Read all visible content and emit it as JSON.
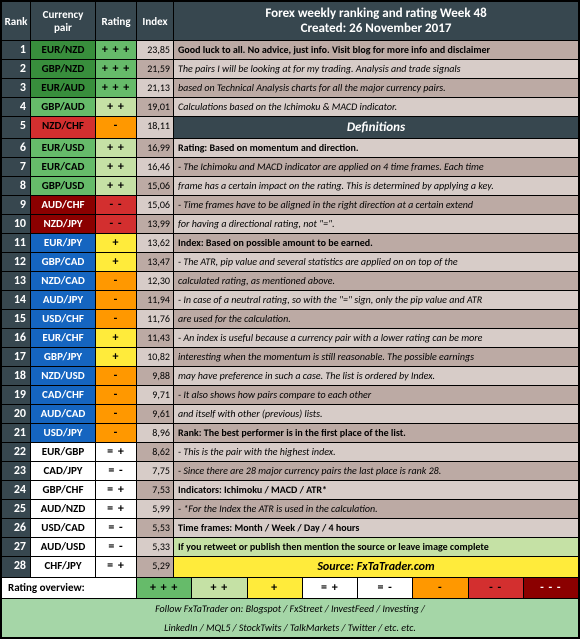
{
  "header": {
    "rank": "Rank",
    "pair": "Currency pair",
    "rating": "Rating",
    "index": "Index",
    "title1": "Forex weekly ranking and rating Week 48",
    "title2": "Created: 26 November 2017"
  },
  "rows": [
    {
      "rank": "1",
      "pair": "EUR/NZD",
      "rating": "+ + +",
      "idx": "23,85",
      "pc": "green-d",
      "rc": "green-m",
      "ic": "tan-l",
      "info": "Good luck to all. No advice, just info. Visit blog for more info and disclaimer",
      "infoc": "tan-d",
      "bold": true
    },
    {
      "rank": "2",
      "pair": "GBP/NZD",
      "rating": "+ + +",
      "idx": "21,59",
      "pc": "green-d",
      "rc": "green-m",
      "ic": "tan-d",
      "info": "The pairs I will be looking at for my trading. Analysis and trade signals",
      "infoc": "tan-l"
    },
    {
      "rank": "3",
      "pair": "EUR/AUD",
      "rating": "+ + +",
      "idx": "21,13",
      "pc": "green-d",
      "rc": "green-m",
      "ic": "tan-l",
      "info": "based on Technical Analysis charts for all the major currency pairs.",
      "infoc": "tan-d"
    },
    {
      "rank": "4",
      "pair": "GBP/AUD",
      "rating": "+ +",
      "idx": "19,01",
      "pc": "green-m",
      "rc": "green-l",
      "ic": "tan-d",
      "info": "Calculations based on the Ichimoku & MACD indicator.",
      "infoc": "tan-l"
    },
    {
      "rank": "5",
      "pair": "NZD/CHF",
      "rating": "-",
      "idx": "18,11",
      "pc": "red",
      "rc": "orange",
      "ic": "tan-l",
      "info": "Definitions",
      "infoc": "defhead",
      "def": true
    },
    {
      "rank": "6",
      "pair": "EUR/USD",
      "rating": "+ +",
      "idx": "16,99",
      "pc": "green-m",
      "rc": "green-l",
      "ic": "tan-d",
      "info": "Rating: Based on momentum and direction.",
      "infoc": "tan-l",
      "bold": true
    },
    {
      "rank": "7",
      "pair": "EUR/CAD",
      "rating": "+ +",
      "idx": "16,46",
      "pc": "green-m",
      "rc": "green-l",
      "ic": "tan-l",
      "info": "- The Ichimoku and MACD indicator are applied on 4 time frames. Each time",
      "infoc": "tan-d"
    },
    {
      "rank": "8",
      "pair": "GBP/USD",
      "rating": "+ +",
      "idx": "15,06",
      "pc": "green-m",
      "rc": "green-l",
      "ic": "tan-d",
      "info": "  frame has a certain impact on the rating. This is determined by applying a key.",
      "infoc": "tan-l"
    },
    {
      "rank": "9",
      "pair": "AUD/CHF",
      "rating": "- -",
      "idx": "15,06",
      "pc": "red-d",
      "rc": "red",
      "ic": "tan-l",
      "info": "- Time frames have to be aligned in the right direction at  a certain extend",
      "infoc": "tan-d"
    },
    {
      "rank": "10",
      "pair": "NZD/JPY",
      "rating": "- -",
      "idx": "13,99",
      "pc": "red-d",
      "rc": "red",
      "ic": "tan-d",
      "info": "  for having a directional rating, not \"=\".",
      "infoc": "tan-l"
    },
    {
      "rank": "11",
      "pair": "EUR/JPY",
      "rating": "+",
      "idx": "13,62",
      "pc": "blue",
      "rc": "yellow",
      "ic": "tan-l",
      "info": "Index: Based on possible amount to be earned.",
      "infoc": "tan-d",
      "bold": true
    },
    {
      "rank": "12",
      "pair": "GBP/CAD",
      "rating": "+",
      "idx": "13,47",
      "pc": "blue",
      "rc": "yellow",
      "ic": "tan-d",
      "info": "- The ATR, pip value and several statistics are applied on on top of the",
      "infoc": "tan-l"
    },
    {
      "rank": "13",
      "pair": "NZD/CAD",
      "rating": "-",
      "idx": "12,30",
      "pc": "blue",
      "rc": "orange",
      "ic": "tan-l",
      "info": "  calculated rating, as mentioned above.",
      "infoc": "tan-d"
    },
    {
      "rank": "14",
      "pair": "AUD/JPY",
      "rating": "-",
      "idx": "11,94",
      "pc": "blue",
      "rc": "orange",
      "ic": "tan-d",
      "info": "- In case of a neutral rating, so with the \"=\" sign, only the pip value and ATR",
      "infoc": "tan-l"
    },
    {
      "rank": "15",
      "pair": "USD/CHF",
      "rating": "-",
      "idx": "11,76",
      "pc": "blue",
      "rc": "orange",
      "ic": "tan-l",
      "info": "  are used for the calculation.",
      "infoc": "tan-d"
    },
    {
      "rank": "16",
      "pair": "EUR/CHF",
      "rating": "+",
      "idx": "11,43",
      "pc": "blue",
      "rc": "yellow",
      "ic": "tan-d",
      "info": "- An index is useful because a currency pair with a lower rating can be more",
      "infoc": "tan-l"
    },
    {
      "rank": "17",
      "pair": "GBP/JPY",
      "rating": "+",
      "idx": "10,82",
      "pc": "blue",
      "rc": "yellow",
      "ic": "tan-l",
      "info": "  interesting when the momentum is still reasonable. The possible earnings",
      "infoc": "tan-d"
    },
    {
      "rank": "18",
      "pair": "NZD/USD",
      "rating": "-",
      "idx": "9,88",
      "pc": "blue",
      "rc": "orange",
      "ic": "tan-d",
      "info": "  may have preference in such a case. The list is ordered by Index.",
      "infoc": "tan-l"
    },
    {
      "rank": "19",
      "pair": "CAD/CHF",
      "rating": "-",
      "idx": "9,71",
      "pc": "blue",
      "rc": "orange",
      "ic": "tan-l",
      "info": "- It also shows how pairs compare to each other",
      "infoc": "tan-d"
    },
    {
      "rank": "20",
      "pair": "AUD/CAD",
      "rating": "-",
      "idx": "9,61",
      "pc": "blue",
      "rc": "orange",
      "ic": "tan-d",
      "info": "  and itself with other (previous) lists.",
      "infoc": "tan-l"
    },
    {
      "rank": "21",
      "pair": "USD/JPY",
      "rating": "-",
      "idx": "8,96",
      "pc": "blue",
      "rc": "orange",
      "ic": "tan-l",
      "info": "Rank: The best performer is in the first place of the list.",
      "infoc": "tan-d",
      "bold": true
    },
    {
      "rank": "22",
      "pair": "EUR/GBP",
      "rating": "= +",
      "idx": "8,62",
      "pc": "white",
      "rc": "white",
      "ic": "tan-d",
      "info": "- This is the pair with the highest index.",
      "infoc": "tan-l"
    },
    {
      "rank": "23",
      "pair": "CAD/JPY",
      "rating": "= -",
      "idx": "7,75",
      "pc": "white",
      "rc": "white",
      "ic": "tan-l",
      "info": "- Since there are 28 major currency pairs the last place is rank 28.",
      "infoc": "tan-d"
    },
    {
      "rank": "24",
      "pair": "GBP/CHF",
      "rating": "= +",
      "idx": "7,53",
      "pc": "white",
      "rc": "white",
      "ic": "tan-d",
      "info": "Indicators: Ichimoku / MACD / ATR*",
      "infoc": "tan-l",
      "bold": true
    },
    {
      "rank": "25",
      "pair": "AUD/NZD",
      "rating": "= +",
      "idx": "5,99",
      "pc": "white",
      "rc": "white",
      "ic": "tan-l",
      "info": "- *For the Index the ATR is used in the calculation.",
      "infoc": "tan-d"
    },
    {
      "rank": "26",
      "pair": "USD/CAD",
      "rating": "= -",
      "idx": "5,53",
      "pc": "white",
      "rc": "white",
      "ic": "tan-d",
      "info": "Time frames: Month / Week / Day / 4 hours",
      "infoc": "tan-l",
      "bold": true
    },
    {
      "rank": "27",
      "pair": "AUD/USD",
      "rating": "= -",
      "idx": "5,33",
      "pc": "white",
      "rc": "white",
      "ic": "tan-l",
      "info": "If you retweet or publish then mention the source or leave image complete",
      "infoc": "green-l",
      "bold": true
    },
    {
      "rank": "28",
      "pair": "CHF/JPY",
      "rating": "= +",
      "idx": "5,29",
      "pc": "white",
      "rc": "white",
      "ic": "tan-d",
      "info": "Source: FxTaTrader.com",
      "infoc": "source",
      "src": true
    }
  ],
  "legend": {
    "label": "Rating overview:",
    "cells": [
      {
        "t": "+ + +",
        "c": "green-m"
      },
      {
        "t": "+ +",
        "c": "green-l"
      },
      {
        "t": "+",
        "c": "yellow"
      },
      {
        "t": "= +",
        "c": "white"
      },
      {
        "t": "= -",
        "c": "white"
      },
      {
        "t": "-",
        "c": "orange"
      },
      {
        "t": "- -",
        "c": "red"
      },
      {
        "t": "- - -",
        "c": "red-d"
      }
    ]
  },
  "footer": {
    "line1": "Follow FxTaTrader on: Blogspot / FxStreet / InvestFeed / Investing /",
    "line2": "LinkedIn / MQL5 / StockTwits / TalkMarkets / Twitter / etc. etc."
  }
}
